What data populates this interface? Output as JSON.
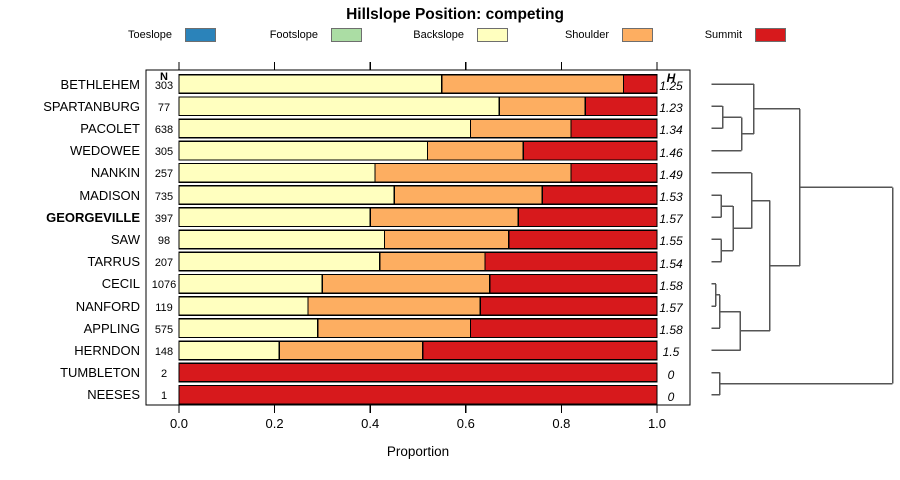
{
  "title": "Hillslope Position: competing",
  "xlabel": "Proportion",
  "columns": {
    "n_header": "N",
    "h_header": "H"
  },
  "colors": {
    "toeslope": "#2B83BA",
    "footslope": "#ABDDA4",
    "backslope": "#FFFFBF",
    "shoulder": "#FDAE61",
    "summit": "#D7191C",
    "bar_border": "#000000",
    "frame": "#000000",
    "dendrogram_line": "#555555"
  },
  "legend": [
    {
      "label": "Toeslope",
      "key": "toeslope"
    },
    {
      "label": "Footslope",
      "key": "footslope"
    },
    {
      "label": "Backslope",
      "key": "backslope"
    },
    {
      "label": "Shoulder",
      "key": "shoulder"
    },
    {
      "label": "Summit",
      "key": "summit"
    }
  ],
  "x_axis": {
    "range": [
      0,
      1
    ],
    "ticks": [
      0,
      0.2,
      0.4,
      0.6,
      0.8,
      1.0
    ],
    "tick_labels": [
      "0.0",
      "0.2",
      "0.4",
      "0.6",
      "0.8",
      "1.0"
    ]
  },
  "chart_data": {
    "type": "bar",
    "orientation": "horizontal-stacked",
    "title": "Hillslope Position: competing",
    "xlabel": "Proportion",
    "xlim": [
      0,
      1
    ],
    "classes": [
      "toeslope",
      "footslope",
      "backslope",
      "shoulder",
      "summit"
    ],
    "rows": [
      {
        "name": "BETHLEHEM",
        "n": 303,
        "h": "1.25",
        "bold": false,
        "proportions": {
          "toeslope": 0,
          "footslope": 0,
          "backslope": 0.55,
          "shoulder": 0.38,
          "summit": 0.07
        }
      },
      {
        "name": "SPARTANBURG",
        "n": 77,
        "h": "1.23",
        "bold": false,
        "proportions": {
          "toeslope": 0,
          "footslope": 0,
          "backslope": 0.67,
          "shoulder": 0.18,
          "summit": 0.15
        }
      },
      {
        "name": "PACOLET",
        "n": 638,
        "h": "1.34",
        "bold": false,
        "proportions": {
          "toeslope": 0,
          "footslope": 0,
          "backslope": 0.61,
          "shoulder": 0.21,
          "summit": 0.18
        }
      },
      {
        "name": "WEDOWEE",
        "n": 305,
        "h": "1.46",
        "bold": false,
        "proportions": {
          "toeslope": 0,
          "footslope": 0,
          "backslope": 0.52,
          "shoulder": 0.2,
          "summit": 0.28
        }
      },
      {
        "name": "NANKIN",
        "n": 257,
        "h": "1.49",
        "bold": false,
        "proportions": {
          "toeslope": 0,
          "footslope": 0,
          "backslope": 0.41,
          "shoulder": 0.41,
          "summit": 0.18
        }
      },
      {
        "name": "MADISON",
        "n": 735,
        "h": "1.53",
        "bold": false,
        "proportions": {
          "toeslope": 0,
          "footslope": 0,
          "backslope": 0.45,
          "shoulder": 0.31,
          "summit": 0.24
        }
      },
      {
        "name": "GEORGEVILLE",
        "n": 397,
        "h": "1.57",
        "bold": true,
        "proportions": {
          "toeslope": 0,
          "footslope": 0,
          "backslope": 0.4,
          "shoulder": 0.31,
          "summit": 0.29
        }
      },
      {
        "name": "SAW",
        "n": 98,
        "h": "1.55",
        "bold": false,
        "proportions": {
          "toeslope": 0,
          "footslope": 0,
          "backslope": 0.43,
          "shoulder": 0.26,
          "summit": 0.31
        }
      },
      {
        "name": "TARRUS",
        "n": 207,
        "h": "1.54",
        "bold": false,
        "proportions": {
          "toeslope": 0,
          "footslope": 0,
          "backslope": 0.42,
          "shoulder": 0.22,
          "summit": 0.36
        }
      },
      {
        "name": "CECIL",
        "n": 1076,
        "h": "1.58",
        "bold": false,
        "proportions": {
          "toeslope": 0,
          "footslope": 0,
          "backslope": 0.3,
          "shoulder": 0.35,
          "summit": 0.35
        }
      },
      {
        "name": "NANFORD",
        "n": 119,
        "h": "1.57",
        "bold": false,
        "proportions": {
          "toeslope": 0,
          "footslope": 0,
          "backslope": 0.27,
          "shoulder": 0.36,
          "summit": 0.37
        }
      },
      {
        "name": "APPLING",
        "n": 575,
        "h": "1.58",
        "bold": false,
        "proportions": {
          "toeslope": 0,
          "footslope": 0,
          "backslope": 0.29,
          "shoulder": 0.32,
          "summit": 0.39
        }
      },
      {
        "name": "HERNDON",
        "n": 148,
        "h": "1.5",
        "bold": false,
        "proportions": {
          "toeslope": 0,
          "footslope": 0,
          "backslope": 0.21,
          "shoulder": 0.3,
          "summit": 0.49
        }
      },
      {
        "name": "TUMBLETON",
        "n": 2,
        "h": "0",
        "bold": false,
        "proportions": {
          "toeslope": 0,
          "footslope": 0,
          "backslope": 0,
          "shoulder": 0,
          "summit": 1.0
        }
      },
      {
        "name": "NEESES",
        "n": 1,
        "h": "0",
        "bold": false,
        "proportions": {
          "toeslope": 0,
          "footslope": 0,
          "backslope": 0,
          "shoulder": 0,
          "summit": 1.0
        }
      }
    ],
    "dendrogram": {
      "note": "heights are fractions of dendrogram horizontal span; merges reference row names or prior merge ids",
      "merges": [
        {
          "id": "m1",
          "a": "SPARTANBURG",
          "b": "PACOLET",
          "h": 0.062
        },
        {
          "id": "m2",
          "a": "m1",
          "b": "WEDOWEE",
          "h": 0.166
        },
        {
          "id": "m3",
          "a": "BETHLEHEM",
          "b": "m2",
          "h": 0.234
        },
        {
          "id": "m4",
          "a": "MADISON",
          "b": "GEORGEVILLE",
          "h": 0.055
        },
        {
          "id": "m5",
          "a": "SAW",
          "b": "TARRUS",
          "h": 0.055
        },
        {
          "id": "m6",
          "a": "m4",
          "b": "m5",
          "h": 0.119
        },
        {
          "id": "m7",
          "a": "NANKIN",
          "b": "m6",
          "h": 0.221
        },
        {
          "id": "m8",
          "a": "CECIL",
          "b": "NANFORD",
          "h": 0.024
        },
        {
          "id": "m9",
          "a": "m8",
          "b": "APPLING",
          "h": 0.046
        },
        {
          "id": "m10",
          "a": "m9",
          "b": "HERNDON",
          "h": 0.16
        },
        {
          "id": "m11",
          "a": "m7",
          "b": "m10",
          "h": 0.322
        },
        {
          "id": "m12",
          "a": "m3",
          "b": "m11",
          "h": 0.488
        },
        {
          "id": "m13",
          "a": "TUMBLETON",
          "b": "NEESES",
          "h": 0.046
        },
        {
          "id": "m14",
          "a": "m12",
          "b": "m13",
          "h": 1.0
        }
      ]
    }
  }
}
